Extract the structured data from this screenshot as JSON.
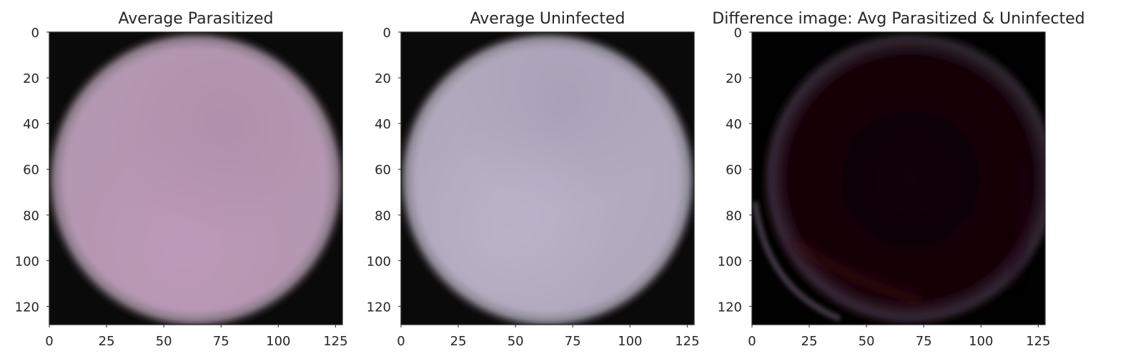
{
  "chart_data": [
    {
      "type": "heatmap",
      "title": "Average Parasitized",
      "xlim": [
        0,
        128
      ],
      "ylim": [
        128,
        0
      ],
      "xticks": [
        0,
        25,
        50,
        75,
        100,
        125
      ],
      "yticks": [
        0,
        20,
        40,
        60,
        80,
        100,
        120
      ],
      "grid": false,
      "description_colors": {
        "background": "#0b0a0a",
        "cell": "#b796b3",
        "cell_shade": "#a9869f"
      }
    },
    {
      "type": "heatmap",
      "title": "Average Uninfected",
      "xlim": [
        0,
        128
      ],
      "ylim": [
        128,
        0
      ],
      "xticks": [
        0,
        25,
        50,
        75,
        100,
        125
      ],
      "yticks": [
        0,
        20,
        40,
        60,
        80,
        100,
        120
      ],
      "grid": false,
      "description_colors": {
        "background": "#0b0a0a",
        "cell": "#b6acc3",
        "cell_shade": "#a69cb4"
      }
    },
    {
      "type": "heatmap",
      "title": "Difference image: Avg Parasitized & Uninfected",
      "xlim": [
        0,
        128
      ],
      "ylim": [
        128,
        0
      ],
      "xticks": [
        0,
        25,
        50,
        75,
        100,
        125
      ],
      "yticks": [
        0,
        20,
        40,
        60,
        80,
        100,
        120
      ],
      "grid": false,
      "description_colors": {
        "background": "#020101",
        "cell": "#140309",
        "edge_highlight": "#6e5f72"
      }
    }
  ]
}
